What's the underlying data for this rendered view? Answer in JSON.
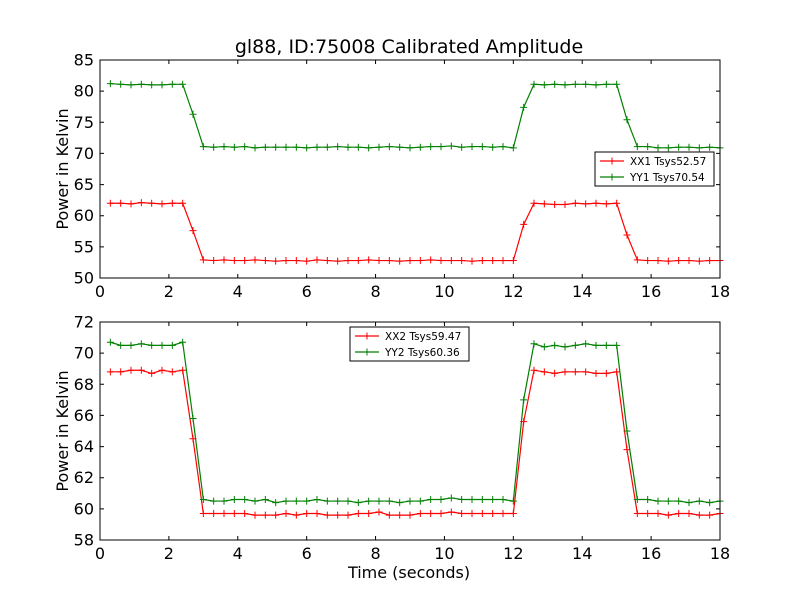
{
  "chart_data": [
    {
      "type": "line",
      "title": "gl88, ID:75008 Calibrated Amplitude",
      "xlabel": "",
      "ylabel": "Power in Kelvin",
      "xlim": [
        0,
        18
      ],
      "ylim": [
        50,
        85
      ],
      "xticks": [
        0,
        2,
        4,
        6,
        8,
        10,
        12,
        14,
        16,
        18
      ],
      "yticks": [
        50,
        55,
        60,
        65,
        70,
        75,
        80,
        85
      ],
      "grid": false,
      "legend": "center-right",
      "x": [
        0.3,
        0.6,
        0.9,
        1.2,
        1.5,
        1.8,
        2.1,
        2.4,
        2.7,
        3.0,
        3.3,
        3.6,
        3.9,
        4.2,
        4.5,
        4.8,
        5.1,
        5.4,
        5.7,
        6.0,
        6.3,
        6.6,
        6.9,
        7.2,
        7.5,
        7.8,
        8.1,
        8.4,
        8.7,
        9.0,
        9.3,
        9.6,
        9.9,
        10.2,
        10.5,
        10.8,
        11.1,
        11.4,
        11.7,
        12.0,
        12.3,
        12.6,
        12.9,
        13.2,
        13.5,
        13.8,
        14.1,
        14.4,
        14.7,
        15.0,
        15.3,
        15.6,
        15.9,
        16.2,
        16.5,
        16.8,
        17.1,
        17.4,
        17.7,
        18.0
      ],
      "series": [
        {
          "name": "XX1 Tsys52.57",
          "color": "#ff0000",
          "values": [
            62.0,
            62.0,
            61.9,
            62.1,
            62.0,
            61.9,
            62.0,
            62.0,
            57.6,
            52.9,
            52.8,
            52.9,
            52.8,
            52.8,
            52.9,
            52.8,
            52.7,
            52.8,
            52.8,
            52.7,
            52.9,
            52.8,
            52.7,
            52.8,
            52.8,
            52.9,
            52.8,
            52.8,
            52.7,
            52.8,
            52.8,
            52.9,
            52.8,
            52.8,
            52.8,
            52.7,
            52.8,
            52.8,
            52.8,
            52.8,
            58.6,
            62.0,
            61.9,
            61.8,
            61.8,
            62.0,
            61.9,
            62.0,
            61.9,
            62.0,
            56.9,
            52.9,
            52.8,
            52.8,
            52.7,
            52.8,
            52.8,
            52.7,
            52.8,
            52.8
          ]
        },
        {
          "name": "YY1 Tsys70.54",
          "color": "#008000",
          "values": [
            81.2,
            81.1,
            81.0,
            81.1,
            81.0,
            81.0,
            81.1,
            81.1,
            76.3,
            71.1,
            71.0,
            71.1,
            71.0,
            71.1,
            70.9,
            71.0,
            71.0,
            71.0,
            71.0,
            70.9,
            71.0,
            71.0,
            71.1,
            71.0,
            71.0,
            70.9,
            71.0,
            71.1,
            71.0,
            70.9,
            71.0,
            71.1,
            71.1,
            71.2,
            71.0,
            71.1,
            71.1,
            71.0,
            71.1,
            70.9,
            77.4,
            81.1,
            81.0,
            81.1,
            81.0,
            81.1,
            81.1,
            81.0,
            81.1,
            81.1,
            75.4,
            71.1,
            71.1,
            70.9,
            70.9,
            71.0,
            71.0,
            70.9,
            71.0,
            70.9
          ]
        }
      ]
    },
    {
      "type": "line",
      "title": "",
      "xlabel": "Time (seconds)",
      "ylabel": "Power in Kelvin",
      "xlim": [
        0,
        18
      ],
      "ylim": [
        58,
        72
      ],
      "xticks": [
        0,
        2,
        4,
        6,
        8,
        10,
        12,
        14,
        16,
        18
      ],
      "yticks": [
        58,
        60,
        62,
        64,
        66,
        68,
        70,
        72
      ],
      "grid": false,
      "legend": "top-center",
      "x": [
        0.3,
        0.6,
        0.9,
        1.2,
        1.5,
        1.8,
        2.1,
        2.4,
        2.7,
        3.0,
        3.3,
        3.6,
        3.9,
        4.2,
        4.5,
        4.8,
        5.1,
        5.4,
        5.7,
        6.0,
        6.3,
        6.6,
        6.9,
        7.2,
        7.5,
        7.8,
        8.1,
        8.4,
        8.7,
        9.0,
        9.3,
        9.6,
        9.9,
        10.2,
        10.5,
        10.8,
        11.1,
        11.4,
        11.7,
        12.0,
        12.3,
        12.6,
        12.9,
        13.2,
        13.5,
        13.8,
        14.1,
        14.4,
        14.7,
        15.0,
        15.3,
        15.6,
        15.9,
        16.2,
        16.5,
        16.8,
        17.1,
        17.4,
        17.7,
        18.0
      ],
      "series": [
        {
          "name": "XX2 Tsys59.47",
          "color": "#ff0000",
          "values": [
            68.8,
            68.8,
            68.9,
            68.9,
            68.7,
            68.9,
            68.8,
            68.9,
            64.5,
            59.7,
            59.7,
            59.7,
            59.7,
            59.7,
            59.6,
            59.6,
            59.6,
            59.7,
            59.6,
            59.7,
            59.7,
            59.6,
            59.6,
            59.6,
            59.7,
            59.7,
            59.8,
            59.6,
            59.6,
            59.6,
            59.7,
            59.7,
            59.7,
            59.8,
            59.7,
            59.7,
            59.7,
            59.7,
            59.7,
            59.7,
            65.6,
            68.9,
            68.8,
            68.7,
            68.8,
            68.8,
            68.8,
            68.7,
            68.7,
            68.8,
            63.8,
            59.7,
            59.7,
            59.7,
            59.6,
            59.7,
            59.7,
            59.6,
            59.6,
            59.7
          ]
        },
        {
          "name": "YY2 Tsys60.36",
          "color": "#008000",
          "values": [
            70.7,
            70.5,
            70.5,
            70.6,
            70.5,
            70.5,
            70.5,
            70.7,
            65.8,
            60.6,
            60.5,
            60.5,
            60.6,
            60.6,
            60.5,
            60.6,
            60.4,
            60.5,
            60.5,
            60.5,
            60.6,
            60.5,
            60.5,
            60.5,
            60.4,
            60.5,
            60.5,
            60.5,
            60.4,
            60.5,
            60.5,
            60.6,
            60.6,
            60.7,
            60.6,
            60.6,
            60.6,
            60.6,
            60.6,
            60.5,
            67.0,
            70.6,
            70.4,
            70.5,
            70.4,
            70.5,
            70.6,
            70.5,
            70.5,
            70.5,
            65.0,
            60.6,
            60.6,
            60.5,
            60.5,
            60.5,
            60.4,
            60.5,
            60.4,
            60.5
          ]
        }
      ]
    }
  ]
}
